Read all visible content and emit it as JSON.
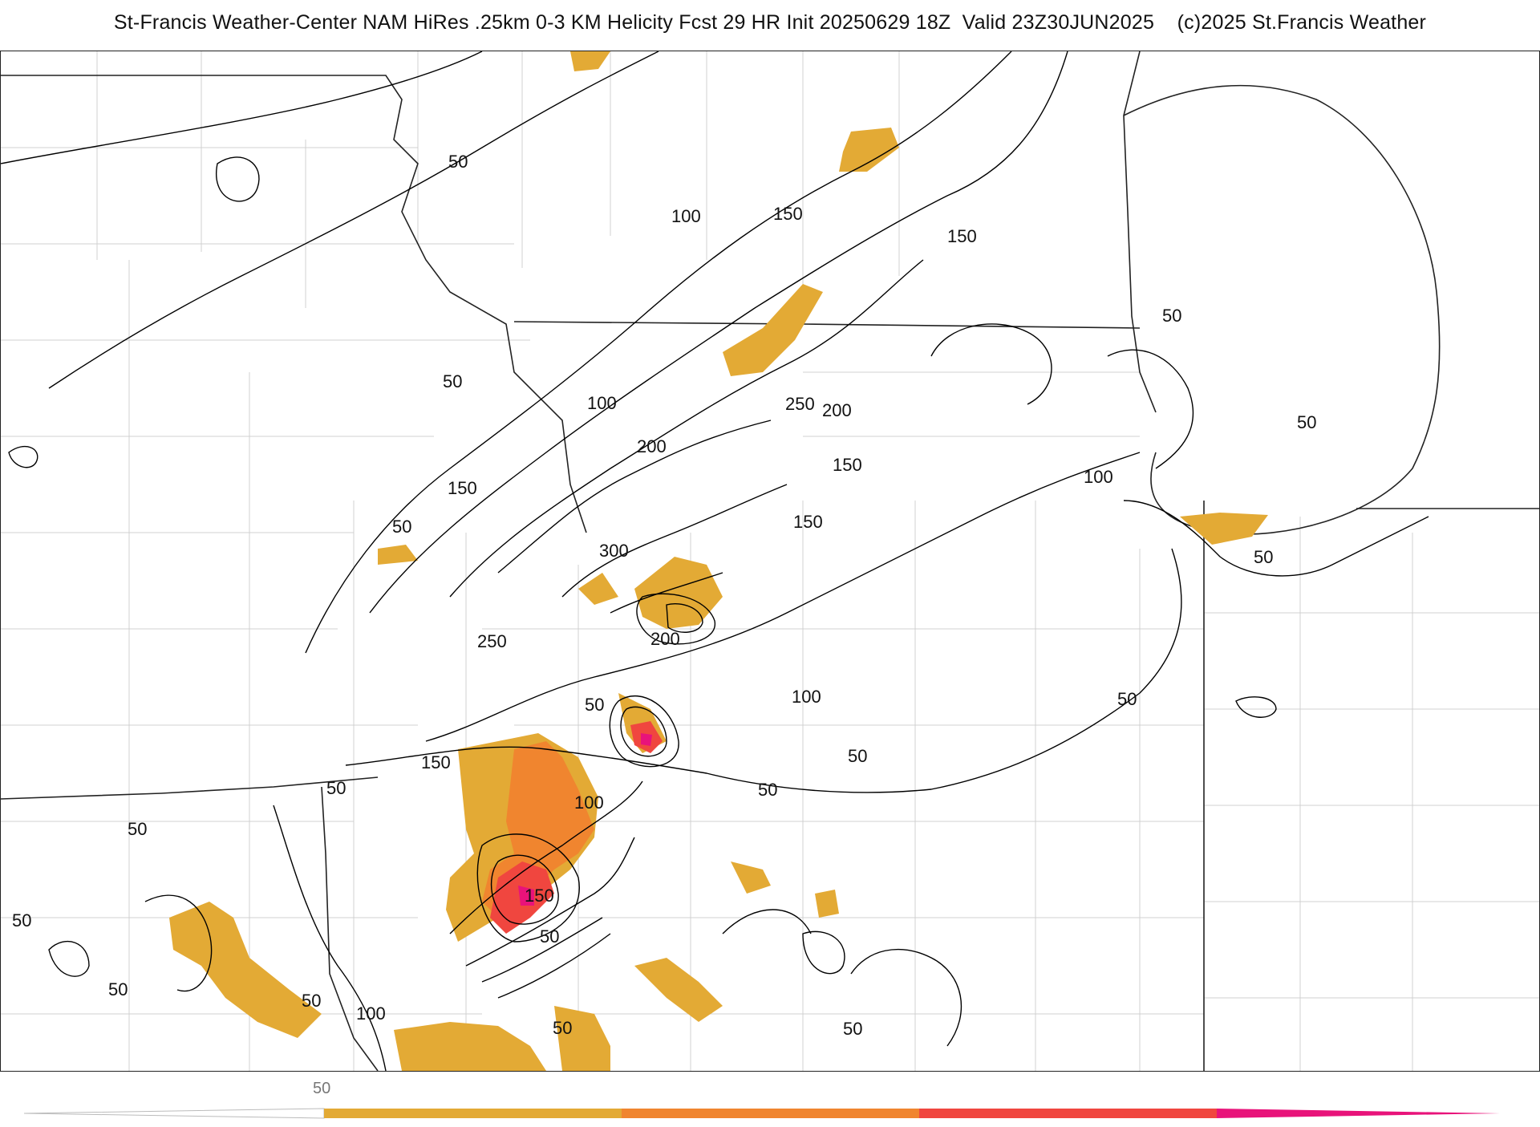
{
  "header": {
    "title": "St-Francis Weather-Center NAM HiRes .25km 0-3 KM Helicity Fcst 29 HR Init 20250629 18Z  Valid 23Z30JUN2025    (c)2025 St.Francis Weather"
  },
  "map": {
    "contour_labels": [
      "50",
      "100",
      "150",
      "200",
      "250",
      "300"
    ],
    "colors": {
      "fill_50": "#e3aa35",
      "fill_100": "#f0852f",
      "fill_150": "#f0463f",
      "fill_200": "#e8137a",
      "contour": "#000000",
      "borders": "#222222",
      "counties": "#cccccc"
    }
  },
  "colorbar": {
    "tick_label": "50",
    "colors": [
      "#e3aa35",
      "#f0852f",
      "#f0463f",
      "#e8137a"
    ]
  }
}
